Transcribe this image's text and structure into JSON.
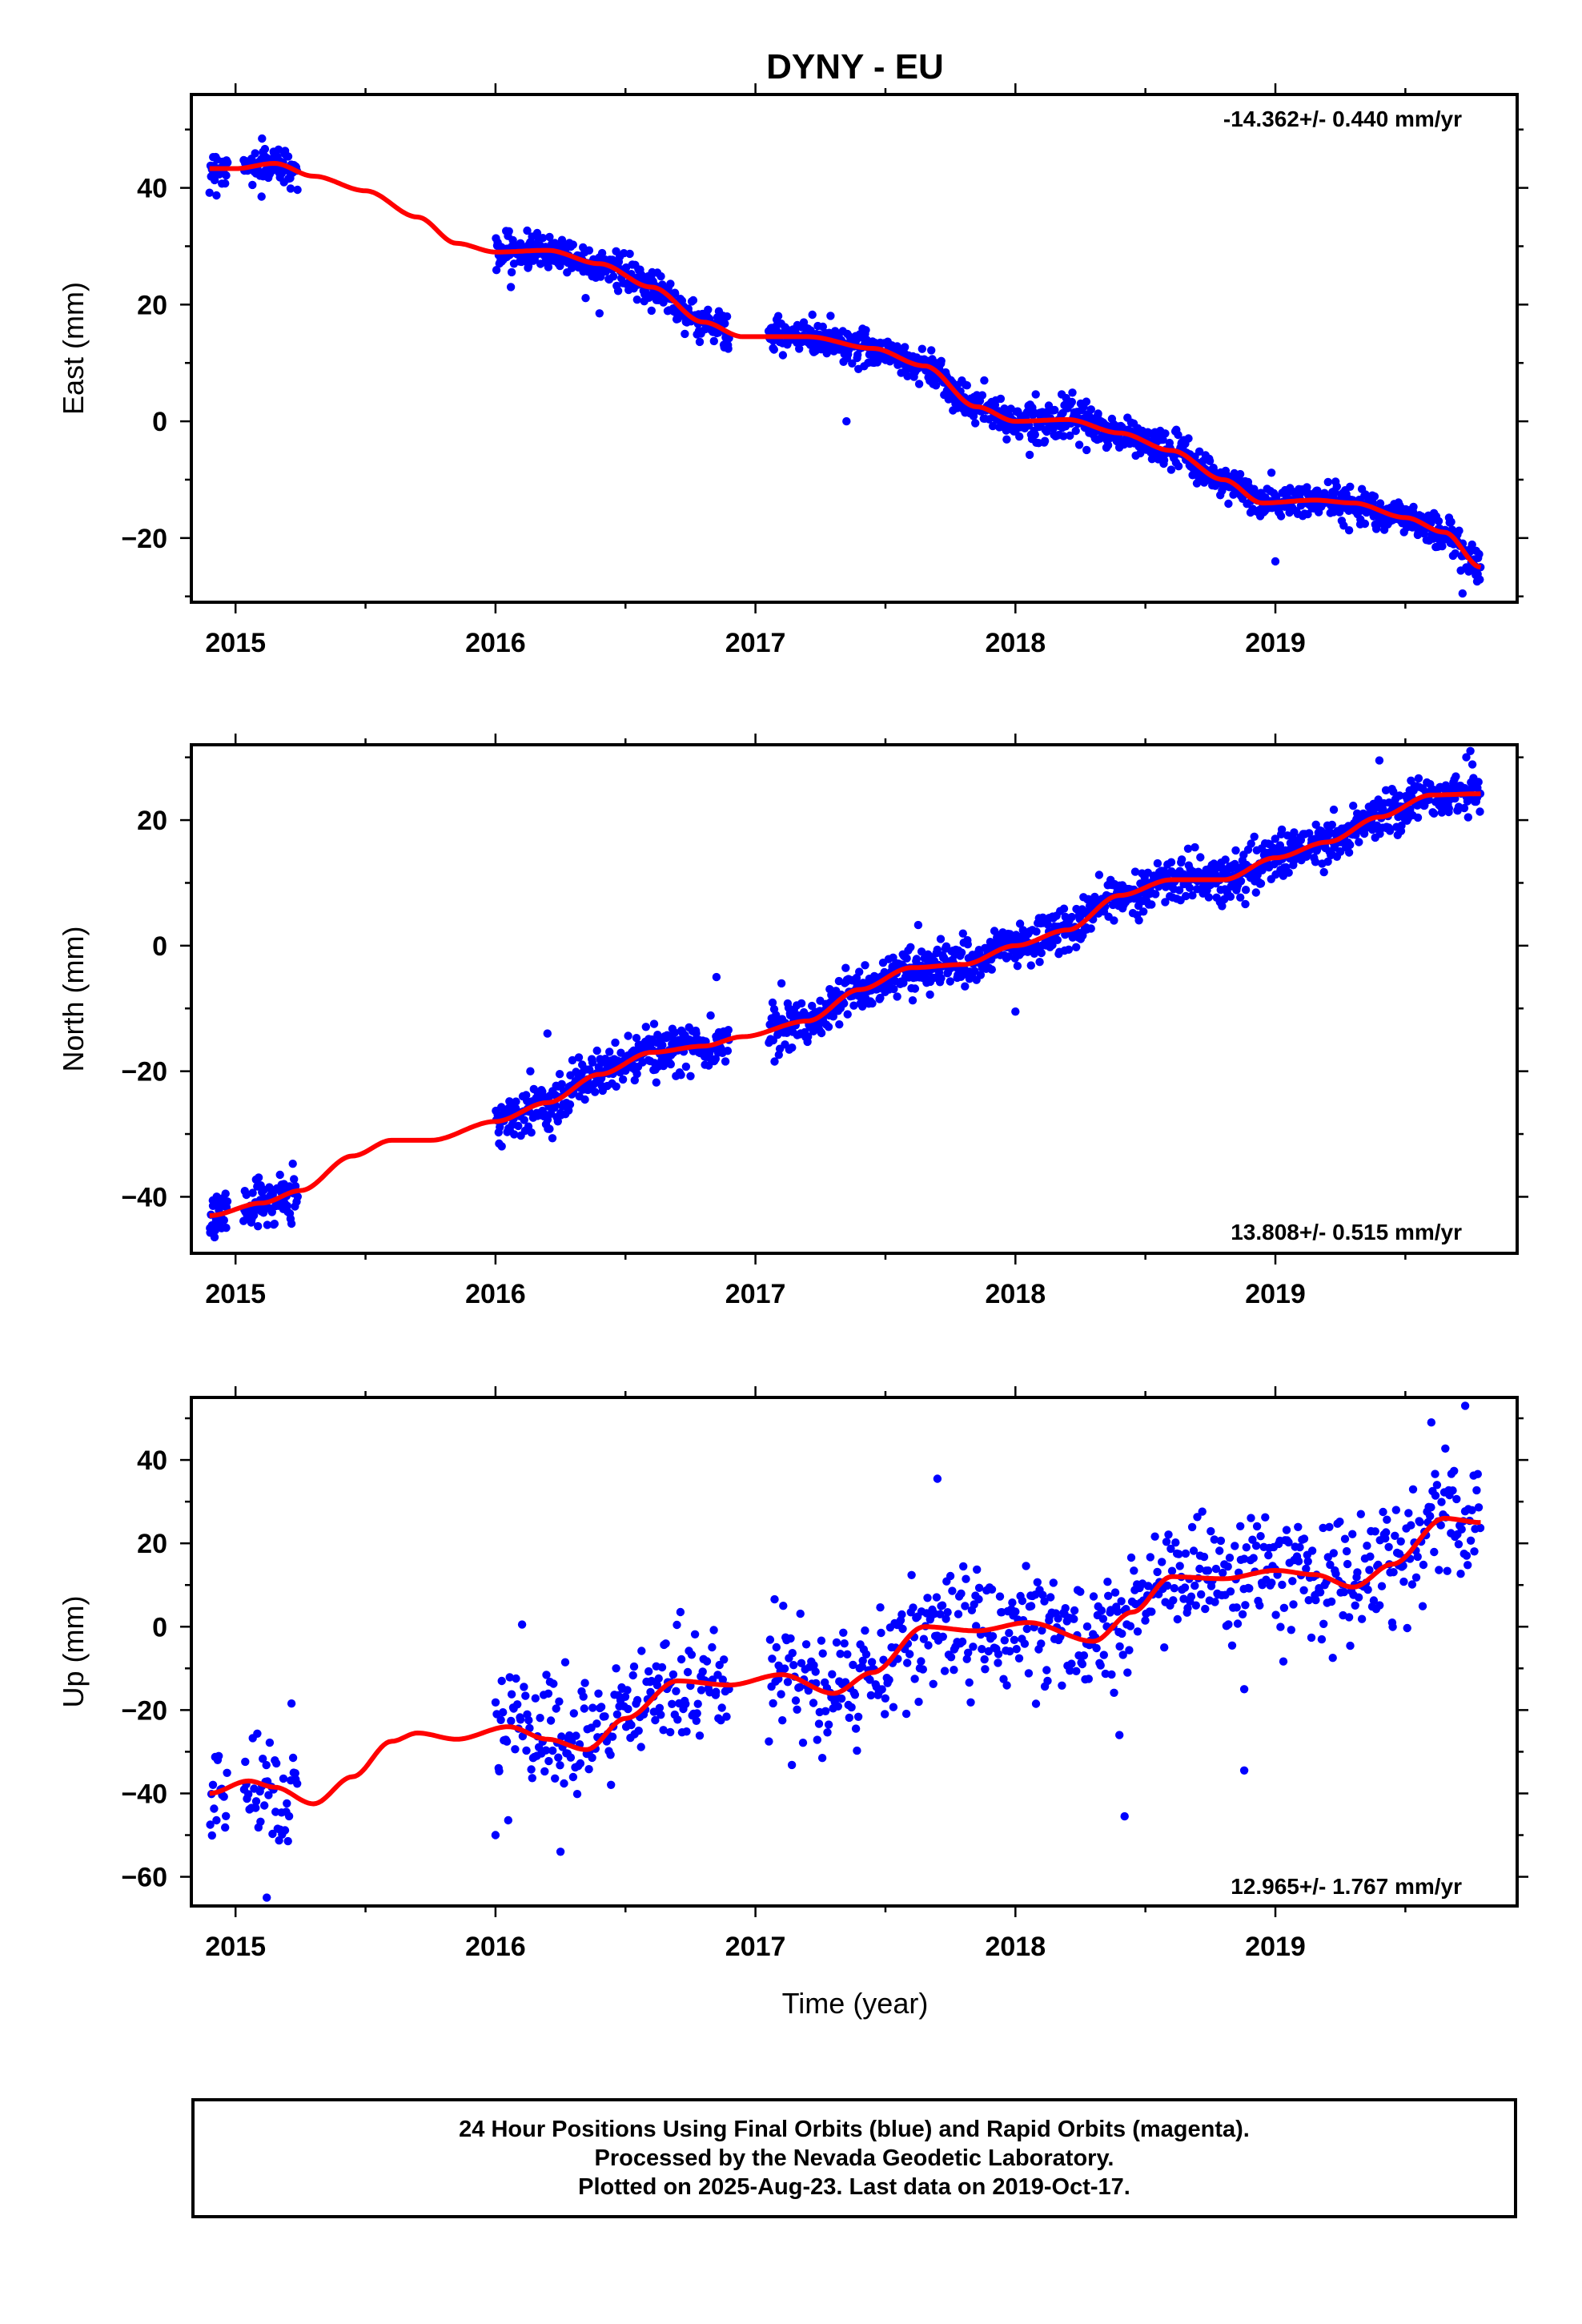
{
  "title": "DYNY - EU",
  "xlabel": "Time (year)",
  "footer": {
    "line1": "24 Hour Positions Using Final Orbits (blue) and Rapid Orbits (magenta).",
    "line2": "Processed by the Nevada Geodetic Laboratory.",
    "line3": "Plotted on 2025-Aug-23. Last data on 2019-Oct-17."
  },
  "colors": {
    "points": "#0000ff",
    "fit": "#ff0000",
    "frame": "#000000"
  },
  "chart_data": [
    {
      "type": "scatter",
      "ylabel": "East (mm)",
      "rate_text": "-14.362+/- 0.440 mm/yr",
      "xlim": [
        2014.83,
        2019.93
      ],
      "ylim": [
        -31,
        56
      ],
      "xticks": [
        2015,
        2016,
        2017,
        2018,
        2019
      ],
      "xtick_labels": [
        "2015",
        "2016",
        "2017",
        "2018",
        "2019"
      ],
      "yticks": [
        -20,
        0,
        20,
        40
      ],
      "ytick_labels": [
        "−20",
        "0",
        "20",
        "40"
      ],
      "segments": [
        [
          2014.9,
          2014.97
        ],
        [
          2015.03,
          2015.24
        ],
        [
          2016.0,
          2016.9
        ],
        [
          2017.05,
          2019.79
        ]
      ],
      "trend_curve": [
        [
          2014.9,
          43.3
        ],
        [
          2015.0,
          43.3
        ],
        [
          2015.15,
          44.2
        ],
        [
          2015.3,
          42.0
        ],
        [
          2015.5,
          39.5
        ],
        [
          2015.7,
          35.0
        ],
        [
          2015.85,
          30.5
        ],
        [
          2016.0,
          29.0
        ],
        [
          2016.2,
          29.3
        ],
        [
          2016.4,
          27.0
        ],
        [
          2016.6,
          23.0
        ],
        [
          2016.8,
          17.0
        ],
        [
          2016.95,
          14.5
        ],
        [
          2017.2,
          14.5
        ],
        [
          2017.45,
          12.5
        ],
        [
          2017.65,
          9.5
        ],
        [
          2017.85,
          2.5
        ],
        [
          2018.0,
          0.0
        ],
        [
          2018.2,
          0.3
        ],
        [
          2018.4,
          -2.0
        ],
        [
          2018.6,
          -5.0
        ],
        [
          2018.8,
          -10.0
        ],
        [
          2018.95,
          -14.0
        ],
        [
          2019.15,
          -13.5
        ],
        [
          2019.3,
          -14.0
        ],
        [
          2019.5,
          -16.5
        ],
        [
          2019.65,
          -19.0
        ],
        [
          2019.79,
          -25.0
        ]
      ],
      "noise": 1.5,
      "n_points": 1500,
      "outliers": [
        [
          2016.4,
          18.5
        ],
        [
          2017.35,
          0.0
        ],
        [
          2018.35,
          -4.5
        ],
        [
          2019.0,
          -24.0
        ],
        [
          2019.72,
          -29.5
        ],
        [
          2015.1,
          38.5
        ]
      ]
    },
    {
      "type": "scatter",
      "ylabel": "North (mm)",
      "rate_text": "13.808+/- 0.515 mm/yr",
      "xlim": [
        2014.83,
        2019.93
      ],
      "ylim": [
        -49,
        32
      ],
      "xticks": [
        2015,
        2016,
        2017,
        2018,
        2019
      ],
      "xtick_labels": [
        "2015",
        "2016",
        "2017",
        "2018",
        "2019"
      ],
      "yticks": [
        -40,
        -20,
        0,
        20
      ],
      "ytick_labels": [
        "−40",
        "−20",
        "0",
        "20"
      ],
      "segments": [
        [
          2014.9,
          2014.97
        ],
        [
          2015.03,
          2015.24
        ],
        [
          2016.0,
          2016.9
        ],
        [
          2017.05,
          2019.79
        ]
      ],
      "trend_curve": [
        [
          2014.9,
          -43.0
        ],
        [
          2015.1,
          -41.0
        ],
        [
          2015.25,
          -39.0
        ],
        [
          2015.45,
          -33.5
        ],
        [
          2015.6,
          -31.0
        ],
        [
          2015.75,
          -31.0
        ],
        [
          2016.0,
          -28.0
        ],
        [
          2016.2,
          -25.0
        ],
        [
          2016.4,
          -20.5
        ],
        [
          2016.6,
          -17.0
        ],
        [
          2016.8,
          -16.0
        ],
        [
          2016.95,
          -14.5
        ],
        [
          2017.2,
          -12.0
        ],
        [
          2017.4,
          -7.0
        ],
        [
          2017.6,
          -3.5
        ],
        [
          2017.8,
          -3.0
        ],
        [
          2018.0,
          0.0
        ],
        [
          2018.2,
          2.5
        ],
        [
          2018.4,
          8.0
        ],
        [
          2018.6,
          10.5
        ],
        [
          2018.8,
          10.5
        ],
        [
          2019.0,
          14.0
        ],
        [
          2019.2,
          16.5
        ],
        [
          2019.4,
          20.5
        ],
        [
          2019.6,
          24.0
        ],
        [
          2019.79,
          24.2
        ]
      ],
      "noise": 1.8,
      "n_points": 1500,
      "outliers": [
        [
          2016.85,
          -5.0
        ],
        [
          2017.1,
          -6.0
        ],
        [
          2018.0,
          -10.5
        ],
        [
          2019.4,
          29.5
        ],
        [
          2016.2,
          -14.0
        ],
        [
          2019.75,
          31.0
        ]
      ]
    },
    {
      "type": "scatter",
      "ylabel": "Up (mm)",
      "rate_text": "12.965+/- 1.767 mm/yr",
      "xlim": [
        2014.83,
        2019.93
      ],
      "ylim": [
        -67,
        55
      ],
      "xticks": [
        2015,
        2016,
        2017,
        2018,
        2019
      ],
      "xtick_labels": [
        "2015",
        "2016",
        "2017",
        "2018",
        "2019"
      ],
      "yticks": [
        -60,
        -40,
        -20,
        0,
        20,
        40
      ],
      "ytick_labels": [
        "−60",
        "−40",
        "−20",
        "0",
        "20",
        "40"
      ],
      "segments": [
        [
          2014.9,
          2014.97
        ],
        [
          2015.03,
          2015.24
        ],
        [
          2016.0,
          2016.9
        ],
        [
          2017.05,
          2019.79
        ]
      ],
      "trend_curve": [
        [
          2014.9,
          -40.0
        ],
        [
          2015.05,
          -37.0
        ],
        [
          2015.15,
          -38.5
        ],
        [
          2015.3,
          -42.5
        ],
        [
          2015.45,
          -36.0
        ],
        [
          2015.6,
          -27.5
        ],
        [
          2015.7,
          -25.5
        ],
        [
          2015.85,
          -27.0
        ],
        [
          2016.05,
          -24.0
        ],
        [
          2016.2,
          -27.0
        ],
        [
          2016.35,
          -29.5
        ],
        [
          2016.5,
          -22.0
        ],
        [
          2016.7,
          -13.0
        ],
        [
          2016.9,
          -14.0
        ],
        [
          2017.1,
          -11.5
        ],
        [
          2017.3,
          -16.0
        ],
        [
          2017.45,
          -11.0
        ],
        [
          2017.65,
          0.0
        ],
        [
          2017.85,
          -1.0
        ],
        [
          2018.05,
          1.0
        ],
        [
          2018.3,
          -3.5
        ],
        [
          2018.45,
          3.5
        ],
        [
          2018.6,
          12.0
        ],
        [
          2018.8,
          11.5
        ],
        [
          2019.0,
          13.5
        ],
        [
          2019.15,
          12.5
        ],
        [
          2019.3,
          9.5
        ],
        [
          2019.45,
          15.0
        ],
        [
          2019.65,
          26.0
        ],
        [
          2019.79,
          25.0
        ]
      ],
      "noise": 7.0,
      "n_points": 900,
      "outliers": [
        [
          2017.7,
          35.5
        ],
        [
          2018.42,
          -45.5
        ],
        [
          2018.88,
          -34.5
        ],
        [
          2019.6,
          49.0
        ],
        [
          2019.73,
          53.0
        ],
        [
          2016.25,
          -54.0
        ],
        [
          2015.12,
          -65.0
        ],
        [
          2016.0,
          -50.0
        ],
        [
          2018.4,
          -26.0
        ],
        [
          2018.88,
          -15.0
        ]
      ]
    }
  ]
}
